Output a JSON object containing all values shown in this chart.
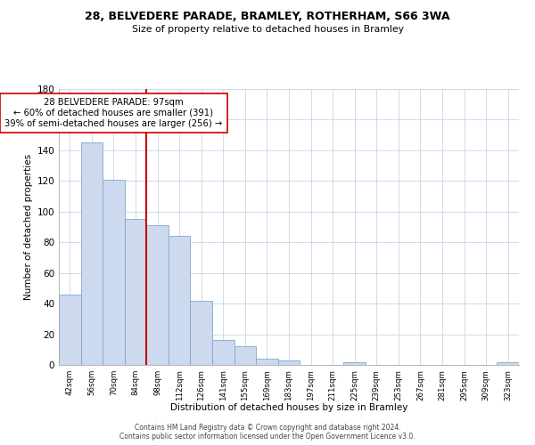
{
  "title": "28, BELVEDERE PARADE, BRAMLEY, ROTHERHAM, S66 3WA",
  "subtitle": "Size of property relative to detached houses in Bramley",
  "xlabel": "Distribution of detached houses by size in Bramley",
  "ylabel": "Number of detached properties",
  "bar_labels": [
    "42sqm",
    "56sqm",
    "70sqm",
    "84sqm",
    "98sqm",
    "112sqm",
    "126sqm",
    "141sqm",
    "155sqm",
    "169sqm",
    "183sqm",
    "197sqm",
    "211sqm",
    "225sqm",
    "239sqm",
    "253sqm",
    "267sqm",
    "281sqm",
    "295sqm",
    "309sqm",
    "323sqm"
  ],
  "bar_values": [
    46,
    145,
    121,
    95,
    91,
    84,
    42,
    16,
    12,
    4,
    3,
    0,
    0,
    2,
    0,
    0,
    0,
    0,
    0,
    0,
    2
  ],
  "bar_color": "#ccd9ee",
  "bar_edge_color": "#7fa8cc",
  "vline_color": "#cc0000",
  "annotation_title": "28 BELVEDERE PARADE: 97sqm",
  "annotation_line1": "← 60% of detached houses are smaller (391)",
  "annotation_line2": "39% of semi-detached houses are larger (256) →",
  "annotation_box_color": "#ffffff",
  "annotation_box_edge": "#cc0000",
  "ylim": [
    0,
    180
  ],
  "footer1": "Contains HM Land Registry data © Crown copyright and database right 2024.",
  "footer2": "Contains public sector information licensed under the Open Government Licence v3.0."
}
